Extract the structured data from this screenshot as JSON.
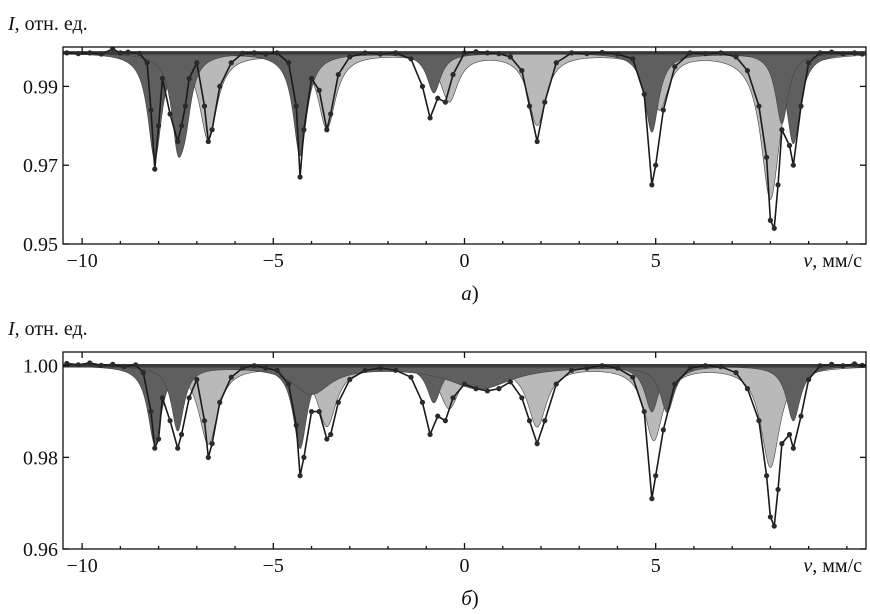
{
  "chart_data": [
    {
      "type": "line",
      "panel_label": "а",
      "ylabel": "I, отн. ед.",
      "xlabel": "v, мм/с",
      "xlim": [
        -10.5,
        10.5
      ],
      "ylim": [
        0.95,
        1.0
      ],
      "x_ticks": [
        -10,
        -5,
        0,
        5
      ],
      "y_ticks": [
        0.95,
        0.97,
        0.99
      ],
      "y_tick_labels": [
        "0.95",
        "0.97",
        "0.99"
      ],
      "x_tick_labels": [
        "−10",
        "−5",
        "0",
        "5"
      ],
      "baseline": 0.9985,
      "colors": {
        "dark": "#5f5f5f",
        "light": "#b9b9b9",
        "band": "#3a3a3a"
      },
      "components": [
        {
          "shade": "dark",
          "lines": [
            [
              -8.1,
              0.027,
              0.22
            ],
            [
              -4.3,
              0.026,
              0.22
            ],
            [
              -0.8,
              0.01,
              0.22
            ],
            [
              4.9,
              0.02,
              0.22
            ],
            [
              8.6,
              0.023,
              0.22
            ]
          ]
        },
        {
          "shade": "dark",
          "lines": [
            [
              -7.5,
              0.02,
              0.2
            ],
            [
              -7.3,
              0.012,
              0.2
            ],
            [
              8.3,
              0.018,
              0.2
            ]
          ]
        },
        {
          "shade": "light",
          "lines": [
            [
              -6.7,
              0.022,
              0.28
            ],
            [
              -3.6,
              0.019,
              0.28
            ],
            [
              -0.4,
              0.012,
              0.28
            ],
            [
              1.9,
              0.018,
              0.28
            ],
            [
              5.1,
              0.014,
              0.28
            ],
            [
              8.0,
              0.037,
              0.3
            ]
          ]
        }
      ],
      "points": [
        [
          -10.4,
          0.9985
        ],
        [
          -10.1,
          0.9983
        ],
        [
          -9.8,
          0.9985
        ],
        [
          -9.5,
          0.9982
        ],
        [
          -9.2,
          0.9995
        ],
        [
          -9.0,
          0.9985
        ],
        [
          -8.8,
          0.9987
        ],
        [
          -8.5,
          0.9984
        ],
        [
          -8.3,
          0.996
        ],
        [
          -8.2,
          0.984
        ],
        [
          -8.1,
          0.969
        ],
        [
          -8.0,
          0.98
        ],
        [
          -7.9,
          0.992
        ],
        [
          -7.7,
          0.983
        ],
        [
          -7.5,
          0.976
        ],
        [
          -7.4,
          0.98
        ],
        [
          -7.3,
          0.985
        ],
        [
          -7.2,
          0.992
        ],
        [
          -7.0,
          0.996
        ],
        [
          -6.8,
          0.985
        ],
        [
          -6.7,
          0.976
        ],
        [
          -6.6,
          0.979
        ],
        [
          -6.4,
          0.99
        ],
        [
          -6.1,
          0.996
        ],
        [
          -5.8,
          0.9984
        ],
        [
          -5.5,
          0.9985
        ],
        [
          -5.2,
          0.9982
        ],
        [
          -4.9,
          0.9985
        ],
        [
          -4.6,
          0.996
        ],
        [
          -4.4,
          0.985
        ],
        [
          -4.3,
          0.967
        ],
        [
          -4.2,
          0.979
        ],
        [
          -4.0,
          0.992
        ],
        [
          -3.8,
          0.989
        ],
        [
          -3.6,
          0.979
        ],
        [
          -3.5,
          0.983
        ],
        [
          -3.3,
          0.993
        ],
        [
          -3.0,
          0.9975
        ],
        [
          -2.6,
          0.9985
        ],
        [
          -2.2,
          0.9982
        ],
        [
          -1.8,
          0.9985
        ],
        [
          -1.4,
          0.997
        ],
        [
          -1.1,
          0.99
        ],
        [
          -0.9,
          0.982
        ],
        [
          -0.7,
          0.987
        ],
        [
          -0.5,
          0.986
        ],
        [
          -0.3,
          0.993
        ],
        [
          0.0,
          0.9985
        ],
        [
          0.3,
          0.9988
        ],
        [
          0.6,
          0.9985
        ],
        [
          0.9,
          0.9983
        ],
        [
          1.2,
          0.9975
        ],
        [
          1.5,
          0.994
        ],
        [
          1.7,
          0.985
        ],
        [
          1.9,
          0.976
        ],
        [
          2.1,
          0.986
        ],
        [
          2.4,
          0.996
        ],
        [
          2.8,
          0.9985
        ],
        [
          3.2,
          0.9983
        ],
        [
          3.6,
          0.9986
        ],
        [
          4.0,
          0.9982
        ],
        [
          4.4,
          0.997
        ],
        [
          4.7,
          0.988
        ],
        [
          4.9,
          0.965
        ],
        [
          5.0,
          0.97
        ],
        [
          5.2,
          0.984
        ],
        [
          5.5,
          0.995
        ],
        [
          5.9,
          0.9985
        ],
        [
          6.3,
          0.9983
        ],
        [
          6.7,
          0.9985
        ],
        [
          7.1,
          0.9975
        ],
        [
          7.4,
          0.994
        ],
        [
          7.7,
          0.985
        ],
        [
          7.9,
          0.972
        ],
        [
          8.0,
          0.956
        ],
        [
          8.1,
          0.954
        ],
        [
          8.2,
          0.965
        ],
        [
          8.3,
          0.979
        ],
        [
          8.5,
          0.975
        ],
        [
          8.6,
          0.97
        ],
        [
          8.8,
          0.985
        ],
        [
          9.0,
          0.996
        ],
        [
          9.3,
          0.9985
        ],
        [
          9.6,
          0.9987
        ],
        [
          9.9,
          0.9983
        ],
        [
          10.2,
          0.9985
        ],
        [
          10.4,
          0.9982
        ]
      ]
    },
    {
      "type": "line",
      "panel_label": "б",
      "ylabel": "I, отн. ед.",
      "xlabel": "v, мм/с",
      "xlim": [
        -10.5,
        10.5
      ],
      "ylim": [
        0.96,
        1.003
      ],
      "x_ticks": [
        -10,
        -5,
        0,
        5
      ],
      "y_ticks": [
        0.96,
        0.98,
        1.0
      ],
      "y_tick_labels": [
        "0.96",
        "0.98",
        "1.00"
      ],
      "x_tick_labels": [
        "−10",
        "−5",
        "0",
        "5"
      ],
      "baseline": 1.0,
      "colors": {
        "dark": "#5f5f5f",
        "light": "#b9b9b9",
        "band": "#3a3a3a"
      },
      "components": [
        {
          "shade": "dark",
          "lines": [
            [
              -8.1,
              0.017,
              0.22
            ],
            [
              -4.3,
              0.018,
              0.22
            ],
            [
              -0.8,
              0.008,
              0.22
            ],
            [
              4.9,
              0.01,
              0.22
            ],
            [
              8.6,
              0.012,
              0.22
            ]
          ]
        },
        {
          "shade": "dark",
          "lines": [
            [
              -7.5,
              0.014,
              0.2
            ],
            [
              -4.0,
              0.006,
              0.6
            ],
            [
              0.4,
              0.005,
              1.0
            ],
            [
              5.3,
              0.01,
              0.22
            ]
          ]
        },
        {
          "shade": "light",
          "lines": [
            [
              -6.7,
              0.017,
              0.3
            ],
            [
              -3.6,
              0.013,
              0.3
            ],
            [
              -0.4,
              0.009,
              0.3
            ],
            [
              1.9,
              0.013,
              0.3
            ],
            [
              4.95,
              0.016,
              0.3
            ],
            [
              8.0,
              0.022,
              0.3
            ]
          ]
        }
      ],
      "points": [
        [
          -10.4,
          1.0005
        ],
        [
          -10.1,
          1.0002
        ],
        [
          -9.8,
          1.0006
        ],
        [
          -9.5,
          1.0001
        ],
        [
          -9.2,
          1.0003
        ],
        [
          -8.9,
          0.9998
        ],
        [
          -8.6,
          1.0002
        ],
        [
          -8.4,
          0.9985
        ],
        [
          -8.2,
          0.99
        ],
        [
          -8.1,
          0.982
        ],
        [
          -8.0,
          0.984
        ],
        [
          -7.9,
          0.993
        ],
        [
          -7.7,
          0.988
        ],
        [
          -7.5,
          0.982
        ],
        [
          -7.4,
          0.985
        ],
        [
          -7.2,
          0.993
        ],
        [
          -7.0,
          0.997
        ],
        [
          -6.8,
          0.988
        ],
        [
          -6.7,
          0.98
        ],
        [
          -6.6,
          0.983
        ],
        [
          -6.4,
          0.992
        ],
        [
          -6.1,
          0.9975
        ],
        [
          -5.8,
          0.9995
        ],
        [
          -5.5,
          1.0
        ],
        [
          -5.2,
          0.9995
        ],
        [
          -4.9,
          0.999
        ],
        [
          -4.6,
          0.996
        ],
        [
          -4.4,
          0.987
        ],
        [
          -4.3,
          0.976
        ],
        [
          -4.2,
          0.98
        ],
        [
          -4.0,
          0.99
        ],
        [
          -3.8,
          0.99
        ],
        [
          -3.6,
          0.984
        ],
        [
          -3.5,
          0.985
        ],
        [
          -3.3,
          0.992
        ],
        [
          -3.0,
          0.997
        ],
        [
          -2.6,
          0.999
        ],
        [
          -2.2,
          0.9995
        ],
        [
          -1.8,
          0.999
        ],
        [
          -1.4,
          0.9975
        ],
        [
          -1.1,
          0.992
        ],
        [
          -0.9,
          0.985
        ],
        [
          -0.7,
          0.989
        ],
        [
          -0.5,
          0.988
        ],
        [
          -0.3,
          0.993
        ],
        [
          0.0,
          0.996
        ],
        [
          0.3,
          0.995
        ],
        [
          0.6,
          0.9945
        ],
        [
          0.9,
          0.995
        ],
        [
          1.2,
          0.9965
        ],
        [
          1.5,
          0.993
        ],
        [
          1.7,
          0.988
        ],
        [
          1.9,
          0.983
        ],
        [
          2.1,
          0.988
        ],
        [
          2.4,
          0.996
        ],
        [
          2.8,
          0.999
        ],
        [
          3.2,
          0.9995
        ],
        [
          3.6,
          1.0
        ],
        [
          4.0,
          0.9995
        ],
        [
          4.4,
          0.9975
        ],
        [
          4.7,
          0.99
        ],
        [
          4.9,
          0.971
        ],
        [
          5.0,
          0.976
        ],
        [
          5.2,
          0.986
        ],
        [
          5.5,
          0.996
        ],
        [
          5.9,
          0.9995
        ],
        [
          6.3,
          1.0
        ],
        [
          6.7,
          0.9998
        ],
        [
          7.1,
          0.9985
        ],
        [
          7.4,
          0.995
        ],
        [
          7.7,
          0.988
        ],
        [
          7.9,
          0.976
        ],
        [
          8.0,
          0.967
        ],
        [
          8.1,
          0.965
        ],
        [
          8.2,
          0.973
        ],
        [
          8.3,
          0.983
        ],
        [
          8.5,
          0.985
        ],
        [
          8.6,
          0.982
        ],
        [
          8.8,
          0.989
        ],
        [
          9.0,
          0.997
        ],
        [
          9.3,
          1.0
        ],
        [
          9.6,
          1.0003
        ],
        [
          9.9,
          1.0
        ],
        [
          10.2,
          1.0004
        ],
        [
          10.4,
          1.0001
        ]
      ]
    }
  ]
}
